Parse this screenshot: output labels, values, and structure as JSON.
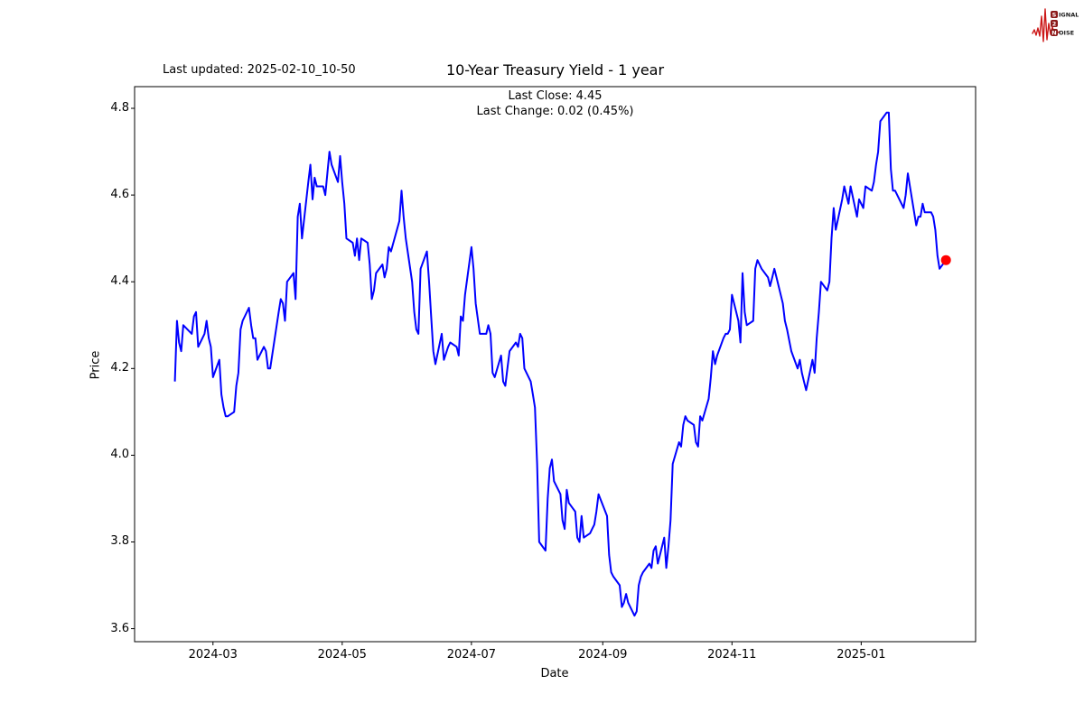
{
  "header": {
    "last_updated": "Last updated: 2025-02-10_10-50"
  },
  "logo": {
    "word1_initial": "S",
    "word1_rest": "IGNAL",
    "word2": "2",
    "word3_initial": "N",
    "word3_rest": "OISE",
    "wave_color": "#cc1818",
    "badge_color": "#8b1a1a"
  },
  "chart_data": {
    "type": "line",
    "title": "10-Year Treasury Yield - 1 year",
    "annotation_line1": "Last Close: 4.45",
    "annotation_line2": "Last Change: 0.02 (0.45%)",
    "xlabel": "Date",
    "ylabel": "Price",
    "line_color": "#0000ff",
    "marker_color": "#ff0000",
    "grid": false,
    "x_domain": [
      "2024-01-24",
      "2025-02-24"
    ],
    "y_domain": [
      3.57,
      4.85
    ],
    "x_ticks": [
      {
        "date": "2024-03-01",
        "label": "2024-03"
      },
      {
        "date": "2024-05-01",
        "label": "2024-05"
      },
      {
        "date": "2024-07-01",
        "label": "2024-07"
      },
      {
        "date": "2024-09-01",
        "label": "2024-09"
      },
      {
        "date": "2024-11-01",
        "label": "2024-11"
      },
      {
        "date": "2025-01-01",
        "label": "2025-01"
      }
    ],
    "y_ticks": [
      {
        "value": 3.6,
        "label": "3.6"
      },
      {
        "value": 3.8,
        "label": "3.8"
      },
      {
        "value": 4.0,
        "label": "4.0"
      },
      {
        "value": 4.2,
        "label": "4.2"
      },
      {
        "value": 4.4,
        "label": "4.4"
      },
      {
        "value": 4.6,
        "label": "4.6"
      },
      {
        "value": 4.8,
        "label": "4.8"
      }
    ],
    "last_point": {
      "date": "2025-02-10",
      "value": 4.45,
      "close": "4.45",
      "change": "0.02",
      "change_pct": "0.45%"
    },
    "series": [
      {
        "name": "10-Year Treasury Yield",
        "points": [
          [
            "2024-02-12",
            4.17
          ],
          [
            "2024-02-13",
            4.31
          ],
          [
            "2024-02-14",
            4.26
          ],
          [
            "2024-02-15",
            4.24
          ],
          [
            "2024-02-16",
            4.3
          ],
          [
            "2024-02-20",
            4.28
          ],
          [
            "2024-02-21",
            4.32
          ],
          [
            "2024-02-22",
            4.33
          ],
          [
            "2024-02-23",
            4.25
          ],
          [
            "2024-02-26",
            4.28
          ],
          [
            "2024-02-27",
            4.31
          ],
          [
            "2024-02-28",
            4.27
          ],
          [
            "2024-02-29",
            4.25
          ],
          [
            "2024-03-01",
            4.18
          ],
          [
            "2024-03-04",
            4.22
          ],
          [
            "2024-03-05",
            4.14
          ],
          [
            "2024-03-06",
            4.11
          ],
          [
            "2024-03-07",
            4.09
          ],
          [
            "2024-03-08",
            4.09
          ],
          [
            "2024-03-11",
            4.1
          ],
          [
            "2024-03-12",
            4.16
          ],
          [
            "2024-03-13",
            4.19
          ],
          [
            "2024-03-14",
            4.29
          ],
          [
            "2024-03-15",
            4.31
          ],
          [
            "2024-03-18",
            4.34
          ],
          [
            "2024-03-19",
            4.3
          ],
          [
            "2024-03-20",
            4.27
          ],
          [
            "2024-03-21",
            4.27
          ],
          [
            "2024-03-22",
            4.22
          ],
          [
            "2024-03-25",
            4.25
          ],
          [
            "2024-03-26",
            4.24
          ],
          [
            "2024-03-27",
            4.2
          ],
          [
            "2024-03-28",
            4.2
          ],
          [
            "2024-04-01",
            4.33
          ],
          [
            "2024-04-02",
            4.36
          ],
          [
            "2024-04-03",
            4.35
          ],
          [
            "2024-04-04",
            4.31
          ],
          [
            "2024-04-05",
            4.4
          ],
          [
            "2024-04-08",
            4.42
          ],
          [
            "2024-04-09",
            4.36
          ],
          [
            "2024-04-10",
            4.55
          ],
          [
            "2024-04-11",
            4.58
          ],
          [
            "2024-04-12",
            4.5
          ],
          [
            "2024-04-15",
            4.63
          ],
          [
            "2024-04-16",
            4.67
          ],
          [
            "2024-04-17",
            4.59
          ],
          [
            "2024-04-18",
            4.64
          ],
          [
            "2024-04-19",
            4.62
          ],
          [
            "2024-04-22",
            4.62
          ],
          [
            "2024-04-23",
            4.6
          ],
          [
            "2024-04-24",
            4.65
          ],
          [
            "2024-04-25",
            4.7
          ],
          [
            "2024-04-26",
            4.67
          ],
          [
            "2024-04-29",
            4.63
          ],
          [
            "2024-04-30",
            4.69
          ],
          [
            "2024-05-01",
            4.63
          ],
          [
            "2024-05-02",
            4.58
          ],
          [
            "2024-05-03",
            4.5
          ],
          [
            "2024-05-06",
            4.49
          ],
          [
            "2024-05-07",
            4.46
          ],
          [
            "2024-05-08",
            4.5
          ],
          [
            "2024-05-09",
            4.45
          ],
          [
            "2024-05-10",
            4.5
          ],
          [
            "2024-05-13",
            4.49
          ],
          [
            "2024-05-14",
            4.44
          ],
          [
            "2024-05-15",
            4.36
          ],
          [
            "2024-05-16",
            4.38
          ],
          [
            "2024-05-17",
            4.42
          ],
          [
            "2024-05-20",
            4.44
          ],
          [
            "2024-05-21",
            4.41
          ],
          [
            "2024-05-22",
            4.43
          ],
          [
            "2024-05-23",
            4.48
          ],
          [
            "2024-05-24",
            4.47
          ],
          [
            "2024-05-28",
            4.54
          ],
          [
            "2024-05-29",
            4.61
          ],
          [
            "2024-05-30",
            4.55
          ],
          [
            "2024-05-31",
            4.5
          ],
          [
            "2024-06-03",
            4.4
          ],
          [
            "2024-06-04",
            4.33
          ],
          [
            "2024-06-05",
            4.29
          ],
          [
            "2024-06-06",
            4.28
          ],
          [
            "2024-06-07",
            4.43
          ],
          [
            "2024-06-10",
            4.47
          ],
          [
            "2024-06-11",
            4.4
          ],
          [
            "2024-06-12",
            4.32
          ],
          [
            "2024-06-13",
            4.24
          ],
          [
            "2024-06-14",
            4.21
          ],
          [
            "2024-06-17",
            4.28
          ],
          [
            "2024-06-18",
            4.22
          ],
          [
            "2024-06-20",
            4.25
          ],
          [
            "2024-06-21",
            4.26
          ],
          [
            "2024-06-24",
            4.25
          ],
          [
            "2024-06-25",
            4.23
          ],
          [
            "2024-06-26",
            4.32
          ],
          [
            "2024-06-27",
            4.31
          ],
          [
            "2024-06-28",
            4.37
          ],
          [
            "2024-07-01",
            4.48
          ],
          [
            "2024-07-02",
            4.43
          ],
          [
            "2024-07-03",
            4.35
          ],
          [
            "2024-07-05",
            4.28
          ],
          [
            "2024-07-08",
            4.28
          ],
          [
            "2024-07-09",
            4.3
          ],
          [
            "2024-07-10",
            4.28
          ],
          [
            "2024-07-11",
            4.19
          ],
          [
            "2024-07-12",
            4.18
          ],
          [
            "2024-07-15",
            4.23
          ],
          [
            "2024-07-16",
            4.17
          ],
          [
            "2024-07-17",
            4.16
          ],
          [
            "2024-07-18",
            4.2
          ],
          [
            "2024-07-19",
            4.24
          ],
          [
            "2024-07-22",
            4.26
          ],
          [
            "2024-07-23",
            4.25
          ],
          [
            "2024-07-24",
            4.28
          ],
          [
            "2024-07-25",
            4.27
          ],
          [
            "2024-07-26",
            4.2
          ],
          [
            "2024-07-29",
            4.17
          ],
          [
            "2024-07-30",
            4.14
          ],
          [
            "2024-07-31",
            4.11
          ],
          [
            "2024-08-01",
            3.98
          ],
          [
            "2024-08-02",
            3.8
          ],
          [
            "2024-08-05",
            3.78
          ],
          [
            "2024-08-06",
            3.9
          ],
          [
            "2024-08-07",
            3.97
          ],
          [
            "2024-08-08",
            3.99
          ],
          [
            "2024-08-09",
            3.94
          ],
          [
            "2024-08-12",
            3.91
          ],
          [
            "2024-08-13",
            3.85
          ],
          [
            "2024-08-14",
            3.83
          ],
          [
            "2024-08-15",
            3.92
          ],
          [
            "2024-08-16",
            3.89
          ],
          [
            "2024-08-19",
            3.87
          ],
          [
            "2024-08-20",
            3.81
          ],
          [
            "2024-08-21",
            3.8
          ],
          [
            "2024-08-22",
            3.86
          ],
          [
            "2024-08-23",
            3.81
          ],
          [
            "2024-08-26",
            3.82
          ],
          [
            "2024-08-27",
            3.83
          ],
          [
            "2024-08-28",
            3.84
          ],
          [
            "2024-08-29",
            3.87
          ],
          [
            "2024-08-30",
            3.91
          ],
          [
            "2024-09-03",
            3.86
          ],
          [
            "2024-09-04",
            3.77
          ],
          [
            "2024-09-05",
            3.73
          ],
          [
            "2024-09-06",
            3.72
          ],
          [
            "2024-09-09",
            3.7
          ],
          [
            "2024-09-10",
            3.65
          ],
          [
            "2024-09-11",
            3.66
          ],
          [
            "2024-09-12",
            3.68
          ],
          [
            "2024-09-13",
            3.66
          ],
          [
            "2024-09-16",
            3.63
          ],
          [
            "2024-09-17",
            3.64
          ],
          [
            "2024-09-18",
            3.7
          ],
          [
            "2024-09-19",
            3.72
          ],
          [
            "2024-09-20",
            3.73
          ],
          [
            "2024-09-23",
            3.75
          ],
          [
            "2024-09-24",
            3.74
          ],
          [
            "2024-09-25",
            3.78
          ],
          [
            "2024-09-26",
            3.79
          ],
          [
            "2024-09-27",
            3.75
          ],
          [
            "2024-09-30",
            3.81
          ],
          [
            "2024-10-01",
            3.74
          ],
          [
            "2024-10-02",
            3.79
          ],
          [
            "2024-10-03",
            3.85
          ],
          [
            "2024-10-04",
            3.98
          ],
          [
            "2024-10-07",
            4.03
          ],
          [
            "2024-10-08",
            4.02
          ],
          [
            "2024-10-09",
            4.07
          ],
          [
            "2024-10-10",
            4.09
          ],
          [
            "2024-10-11",
            4.08
          ],
          [
            "2024-10-14",
            4.07
          ],
          [
            "2024-10-15",
            4.03
          ],
          [
            "2024-10-16",
            4.02
          ],
          [
            "2024-10-17",
            4.09
          ],
          [
            "2024-10-18",
            4.08
          ],
          [
            "2024-10-21",
            4.13
          ],
          [
            "2024-10-22",
            4.18
          ],
          [
            "2024-10-23",
            4.24
          ],
          [
            "2024-10-24",
            4.21
          ],
          [
            "2024-10-25",
            4.23
          ],
          [
            "2024-10-28",
            4.27
          ],
          [
            "2024-10-29",
            4.28
          ],
          [
            "2024-10-30",
            4.28
          ],
          [
            "2024-10-31",
            4.29
          ],
          [
            "2024-11-01",
            4.37
          ],
          [
            "2024-11-04",
            4.31
          ],
          [
            "2024-11-05",
            4.26
          ],
          [
            "2024-11-06",
            4.42
          ],
          [
            "2024-11-07",
            4.33
          ],
          [
            "2024-11-08",
            4.3
          ],
          [
            "2024-11-11",
            4.31
          ],
          [
            "2024-11-12",
            4.43
          ],
          [
            "2024-11-13",
            4.45
          ],
          [
            "2024-11-14",
            4.44
          ],
          [
            "2024-11-15",
            4.43
          ],
          [
            "2024-11-18",
            4.41
          ],
          [
            "2024-11-19",
            4.39
          ],
          [
            "2024-11-20",
            4.41
          ],
          [
            "2024-11-21",
            4.43
          ],
          [
            "2024-11-22",
            4.41
          ],
          [
            "2024-11-25",
            4.35
          ],
          [
            "2024-11-26",
            4.31
          ],
          [
            "2024-11-27",
            4.29
          ],
          [
            "2024-11-29",
            4.24
          ],
          [
            "2024-12-02",
            4.2
          ],
          [
            "2024-12-03",
            4.22
          ],
          [
            "2024-12-04",
            4.19
          ],
          [
            "2024-12-05",
            4.17
          ],
          [
            "2024-12-06",
            4.15
          ],
          [
            "2024-12-09",
            4.22
          ],
          [
            "2024-12-10",
            4.19
          ],
          [
            "2024-12-11",
            4.27
          ],
          [
            "2024-12-12",
            4.33
          ],
          [
            "2024-12-13",
            4.4
          ],
          [
            "2024-12-16",
            4.38
          ],
          [
            "2024-12-17",
            4.4
          ],
          [
            "2024-12-18",
            4.5
          ],
          [
            "2024-12-19",
            4.57
          ],
          [
            "2024-12-20",
            4.52
          ],
          [
            "2024-12-23",
            4.59
          ],
          [
            "2024-12-24",
            4.62
          ],
          [
            "2024-12-26",
            4.58
          ],
          [
            "2024-12-27",
            4.62
          ],
          [
            "2024-12-30",
            4.55
          ],
          [
            "2024-12-31",
            4.59
          ],
          [
            "2025-01-02",
            4.57
          ],
          [
            "2025-01-03",
            4.62
          ],
          [
            "2025-01-06",
            4.61
          ],
          [
            "2025-01-07",
            4.63
          ],
          [
            "2025-01-08",
            4.67
          ],
          [
            "2025-01-09",
            4.7
          ],
          [
            "2025-01-10",
            4.77
          ],
          [
            "2025-01-13",
            4.79
          ],
          [
            "2025-01-14",
            4.79
          ],
          [
            "2025-01-15",
            4.66
          ],
          [
            "2025-01-16",
            4.61
          ],
          [
            "2025-01-17",
            4.61
          ],
          [
            "2025-01-21",
            4.57
          ],
          [
            "2025-01-22",
            4.6
          ],
          [
            "2025-01-23",
            4.65
          ],
          [
            "2025-01-24",
            4.62
          ],
          [
            "2025-01-27",
            4.53
          ],
          [
            "2025-01-28",
            4.55
          ],
          [
            "2025-01-29",
            4.55
          ],
          [
            "2025-01-30",
            4.58
          ],
          [
            "2025-01-31",
            4.56
          ],
          [
            "2025-02-03",
            4.56
          ],
          [
            "2025-02-04",
            4.55
          ],
          [
            "2025-02-05",
            4.52
          ],
          [
            "2025-02-06",
            4.46
          ],
          [
            "2025-02-07",
            4.43
          ],
          [
            "2025-02-10",
            4.45
          ]
        ]
      }
    ]
  }
}
